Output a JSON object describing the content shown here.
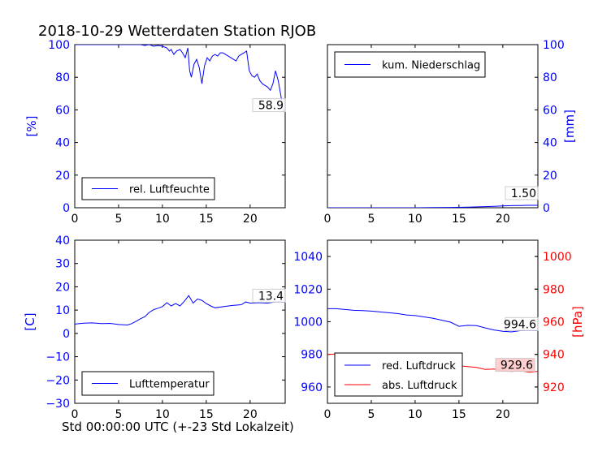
{
  "figure": {
    "title": "2018-10-29 Wetterdaten Station RJOB",
    "xlabel": "Std 00:00:00 UTC (+-23 Std Lokalzeit)"
  },
  "colors": {
    "blue": "#0000ff",
    "red": "#ff0000",
    "black": "#000000"
  },
  "chart_data": [
    {
      "id": "humidity",
      "type": "line",
      "title": "",
      "xlabel": "",
      "ylabel": "[%]",
      "xlim": [
        0,
        24
      ],
      "ylim": [
        0,
        100
      ],
      "xticks": [
        "0",
        "5",
        "10",
        "15",
        "20"
      ],
      "yticks": [
        "0",
        "20",
        "40",
        "60",
        "80",
        "100"
      ],
      "legend_position": "lower-left",
      "last_value_label": "58.9",
      "series": [
        {
          "name": "rel. Luftfeuchte",
          "color": "#0000ff",
          "x": [
            0,
            1,
            2,
            3,
            4,
            5,
            6,
            7,
            7.5,
            8,
            8.5,
            9,
            9.5,
            10,
            10.5,
            10.8,
            11,
            11.3,
            11.6,
            12,
            12.3,
            12.6,
            12.9,
            13.1,
            13.3,
            13.6,
            13.9,
            14.2,
            14.5,
            14.8,
            15.1,
            15.4,
            15.7,
            16,
            16.3,
            16.6,
            16.9,
            17.2,
            17.5,
            17.8,
            18.1,
            18.4,
            18.7,
            19,
            19.3,
            19.6,
            19.9,
            20.2,
            20.5,
            20.8,
            21.1,
            21.4,
            21.7,
            22,
            22.3,
            22.6,
            22.9,
            23.2,
            23.5,
            23.8
          ],
          "y": [
            100,
            100,
            100,
            100,
            100,
            100,
            100,
            100,
            100,
            99.5,
            100,
            99,
            99.5,
            99,
            98,
            96,
            97,
            94,
            96,
            97,
            95,
            92,
            98,
            84,
            80,
            88,
            91,
            86,
            76,
            87,
            92,
            90,
            93,
            94,
            93,
            95,
            95,
            94,
            93,
            92,
            91,
            90,
            93,
            94,
            95,
            96,
            84,
            81,
            80,
            82,
            78,
            76,
            75,
            74,
            72,
            76,
            84,
            78,
            69,
            58.9
          ]
        }
      ]
    },
    {
      "id": "precipitation",
      "type": "line",
      "title": "",
      "xlabel": "",
      "ylabel": "[mm]",
      "xlim": [
        0,
        24
      ],
      "ylim": [
        0,
        100
      ],
      "xticks": [
        "0",
        "5",
        "10",
        "15",
        "20"
      ],
      "yticks": [
        "0",
        "20",
        "40",
        "60",
        "80",
        "100"
      ],
      "legend_position": "top-left",
      "last_value_label": "1.50",
      "series": [
        {
          "name": "kum. Niederschlag",
          "color": "#0000ff",
          "x": [
            0,
            5,
            10,
            12,
            14,
            16,
            18,
            19,
            20,
            21,
            22,
            23,
            24
          ],
          "y": [
            0,
            0,
            0,
            0.1,
            0.2,
            0.4,
            0.7,
            0.9,
            1.1,
            1.3,
            1.4,
            1.5,
            1.5
          ]
        }
      ]
    },
    {
      "id": "temperature",
      "type": "line",
      "title": "",
      "xlabel": "",
      "ylabel": "[C]",
      "xlim": [
        0,
        24
      ],
      "ylim": [
        -30,
        40
      ],
      "xticks": [
        "0",
        "5",
        "10",
        "15",
        "20"
      ],
      "yticks": [
        "-30",
        "-20",
        "-10",
        "0",
        "10",
        "20",
        "30",
        "40"
      ],
      "legend_position": "lower-left",
      "last_value_label": "13.4",
      "series": [
        {
          "name": "Lufttemperatur",
          "color": "#0000ff",
          "x": [
            0,
            1,
            2,
            3,
            4,
            5,
            6,
            6.5,
            7,
            7.5,
            8,
            8.5,
            9,
            9.5,
            10,
            10.5,
            11,
            11.5,
            12,
            12.5,
            13,
            13.5,
            14,
            14.5,
            15,
            15.5,
            16,
            17,
            18,
            19,
            19.5,
            20,
            21,
            22,
            23,
            24
          ],
          "y": [
            4.0,
            4.4,
            4.5,
            4.2,
            4.3,
            3.8,
            3.6,
            4.2,
            5.2,
            6.3,
            7.2,
            9.0,
            10.2,
            10.8,
            11.5,
            13.2,
            11.8,
            12.8,
            11.8,
            13.8,
            16.2,
            13.0,
            14.8,
            14.2,
            12.8,
            11.8,
            11.0,
            11.5,
            12.0,
            12.3,
            13.5,
            13.0,
            13.2,
            13.0,
            13.6,
            13.4
          ]
        }
      ]
    },
    {
      "id": "pressure",
      "type": "line",
      "title": "",
      "xlabel": "",
      "ylabel": "[hPa]",
      "xlim": [
        0,
        24
      ],
      "ylim": [
        950,
        1050
      ],
      "ylim_right": [
        910,
        1010
      ],
      "xticks": [
        "0",
        "5",
        "10",
        "15",
        "20"
      ],
      "yticks": [
        "960",
        "980",
        "1000",
        "1020",
        "1040"
      ],
      "yticks_right": [
        "920",
        "940",
        "960",
        "980",
        "1000"
      ],
      "legend_position": "lower-left",
      "last_value_label": "994.6",
      "last_value_label_2": "929.6",
      "series": [
        {
          "name": "red. Luftdruck",
          "color": "#0000ff",
          "axis": "left",
          "x": [
            0,
            1,
            2,
            3,
            4,
            5,
            6,
            7,
            8,
            9,
            10,
            11,
            12,
            13,
            14,
            15,
            16,
            17,
            18,
            19,
            20,
            21,
            22,
            23,
            24
          ],
          "y": [
            1008,
            1008,
            1007.5,
            1007,
            1006.8,
            1006.5,
            1006,
            1005.5,
            1005,
            1004.2,
            1003.8,
            1003,
            1002.2,
            1001,
            999.8,
            997.2,
            997.8,
            997.6,
            996.2,
            995.0,
            994.2,
            993.8,
            994.6,
            994.8,
            994.6
          ]
        },
        {
          "name": "abs. Luftdruck",
          "color": "#ff0000",
          "axis": "right",
          "x": [
            0,
            1,
            2,
            3,
            4,
            5,
            6,
            7,
            8,
            9,
            10,
            11,
            12,
            13,
            14,
            15,
            16,
            17,
            18,
            19,
            20,
            21,
            22,
            23,
            24
          ],
          "y": [
            940,
            940.2,
            939.8,
            939.2,
            939.0,
            938.5,
            938.0,
            937.5,
            937.4,
            937.4,
            938.0,
            937.2,
            936.5,
            935.8,
            934.0,
            933.0,
            932.5,
            932.0,
            930.8,
            931.0,
            930.0,
            929.5,
            930.0,
            929.0,
            929.6
          ]
        }
      ]
    }
  ]
}
